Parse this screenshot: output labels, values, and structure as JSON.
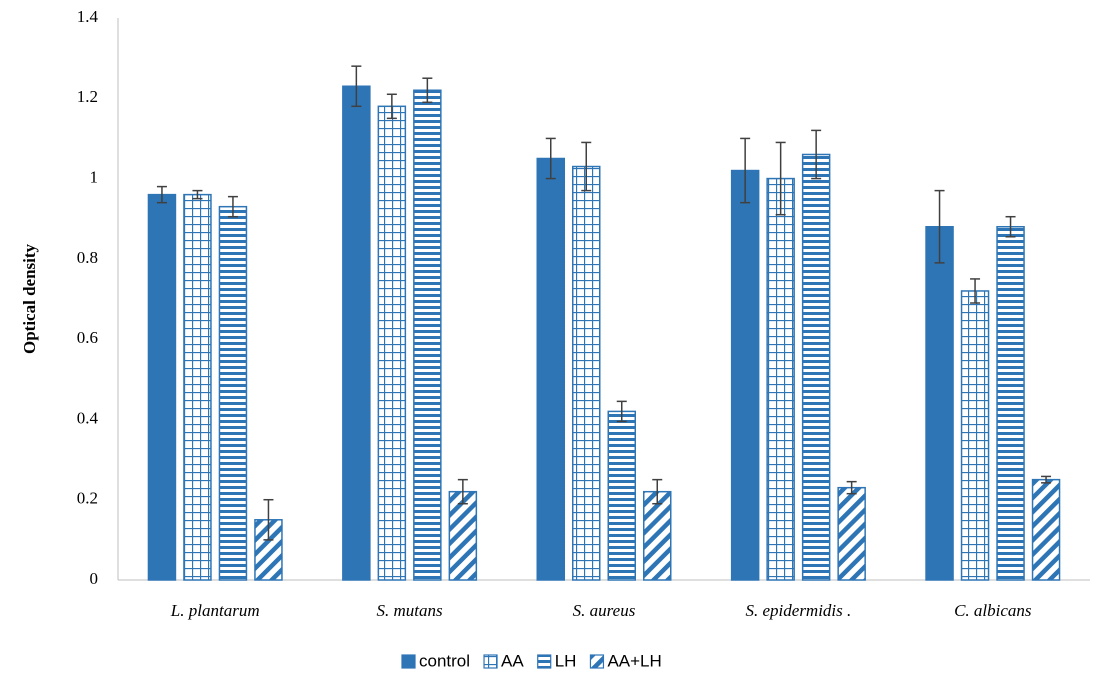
{
  "chart_data": {
    "type": "bar",
    "title": "",
    "xlabel": "",
    "ylabel": "Optical density",
    "ylim": [
      0,
      1.4
    ],
    "yticks": [
      "0",
      "0.2",
      "0.4",
      "0.6",
      "0.8",
      "1",
      "1.2",
      "1.4"
    ],
    "grid": false,
    "legend_position": "bottom",
    "categories": [
      "L. plantarum",
      "S. mutans",
      "S. aureus",
      "S. epidermidis .",
      "C. albicans"
    ],
    "series": [
      {
        "name": "control",
        "pattern": "solid",
        "color": "#2E75B6",
        "values": [
          0.96,
          1.23,
          1.05,
          1.02,
          0.88
        ],
        "errors": [
          0.02,
          0.05,
          0.05,
          0.08,
          0.09
        ]
      },
      {
        "name": "AA",
        "pattern": "grid",
        "color": "#2E75B6",
        "values": [
          0.96,
          1.18,
          1.03,
          1.0,
          0.72
        ],
        "errors": [
          0.01,
          0.03,
          0.06,
          0.09,
          0.03
        ]
      },
      {
        "name": "LH",
        "pattern": "horizontal-lines",
        "color": "#2E75B6",
        "values": [
          0.93,
          1.22,
          0.42,
          1.06,
          0.88
        ],
        "errors": [
          0.025,
          0.03,
          0.025,
          0.06,
          0.025
        ]
      },
      {
        "name": "AA+LH",
        "pattern": "diagonal-stripes",
        "color": "#2E75B6",
        "values": [
          0.15,
          0.22,
          0.22,
          0.23,
          0.25
        ],
        "errors": [
          0.05,
          0.03,
          0.03,
          0.015,
          0.008
        ]
      }
    ]
  }
}
